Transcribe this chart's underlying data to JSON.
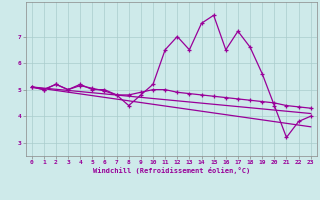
{
  "xlabel": "Windchill (Refroidissement éolien,°C)",
  "bg_color": "#ceeaea",
  "grid_color": "#aacccc",
  "line_color": "#990099",
  "xlim": [
    -0.5,
    23.5
  ],
  "ylim": [
    2.5,
    8.3
  ],
  "yticks": [
    3,
    4,
    5,
    6,
    7
  ],
  "xticks": [
    0,
    1,
    2,
    3,
    4,
    5,
    6,
    7,
    8,
    9,
    10,
    11,
    12,
    13,
    14,
    15,
    16,
    17,
    18,
    19,
    20,
    21,
    22,
    23
  ],
  "x": [
    0,
    1,
    2,
    3,
    4,
    5,
    6,
    7,
    8,
    9,
    10,
    11,
    12,
    13,
    14,
    15,
    16,
    17,
    18,
    19,
    20,
    21,
    22,
    23
  ],
  "spiky": [
    5.1,
    5.0,
    5.2,
    5.0,
    5.2,
    5.0,
    5.0,
    4.8,
    4.4,
    4.8,
    5.2,
    6.5,
    7.0,
    6.5,
    7.5,
    7.8,
    6.5,
    7.2,
    6.6,
    5.6,
    4.4,
    3.2,
    3.8,
    4.0
  ],
  "flat1": [
    5.1,
    5.0,
    5.2,
    5.0,
    5.15,
    5.05,
    4.95,
    4.8,
    4.8,
    4.9,
    5.0,
    5.0,
    4.9,
    4.85,
    4.8,
    4.75,
    4.7,
    4.65,
    4.6,
    4.55,
    4.5,
    4.4,
    4.35,
    4.3
  ],
  "line1_x": [
    0,
    23
  ],
  "line1_y": [
    5.1,
    4.1
  ],
  "line2_x": [
    0,
    23
  ],
  "line2_y": [
    5.1,
    3.6
  ]
}
